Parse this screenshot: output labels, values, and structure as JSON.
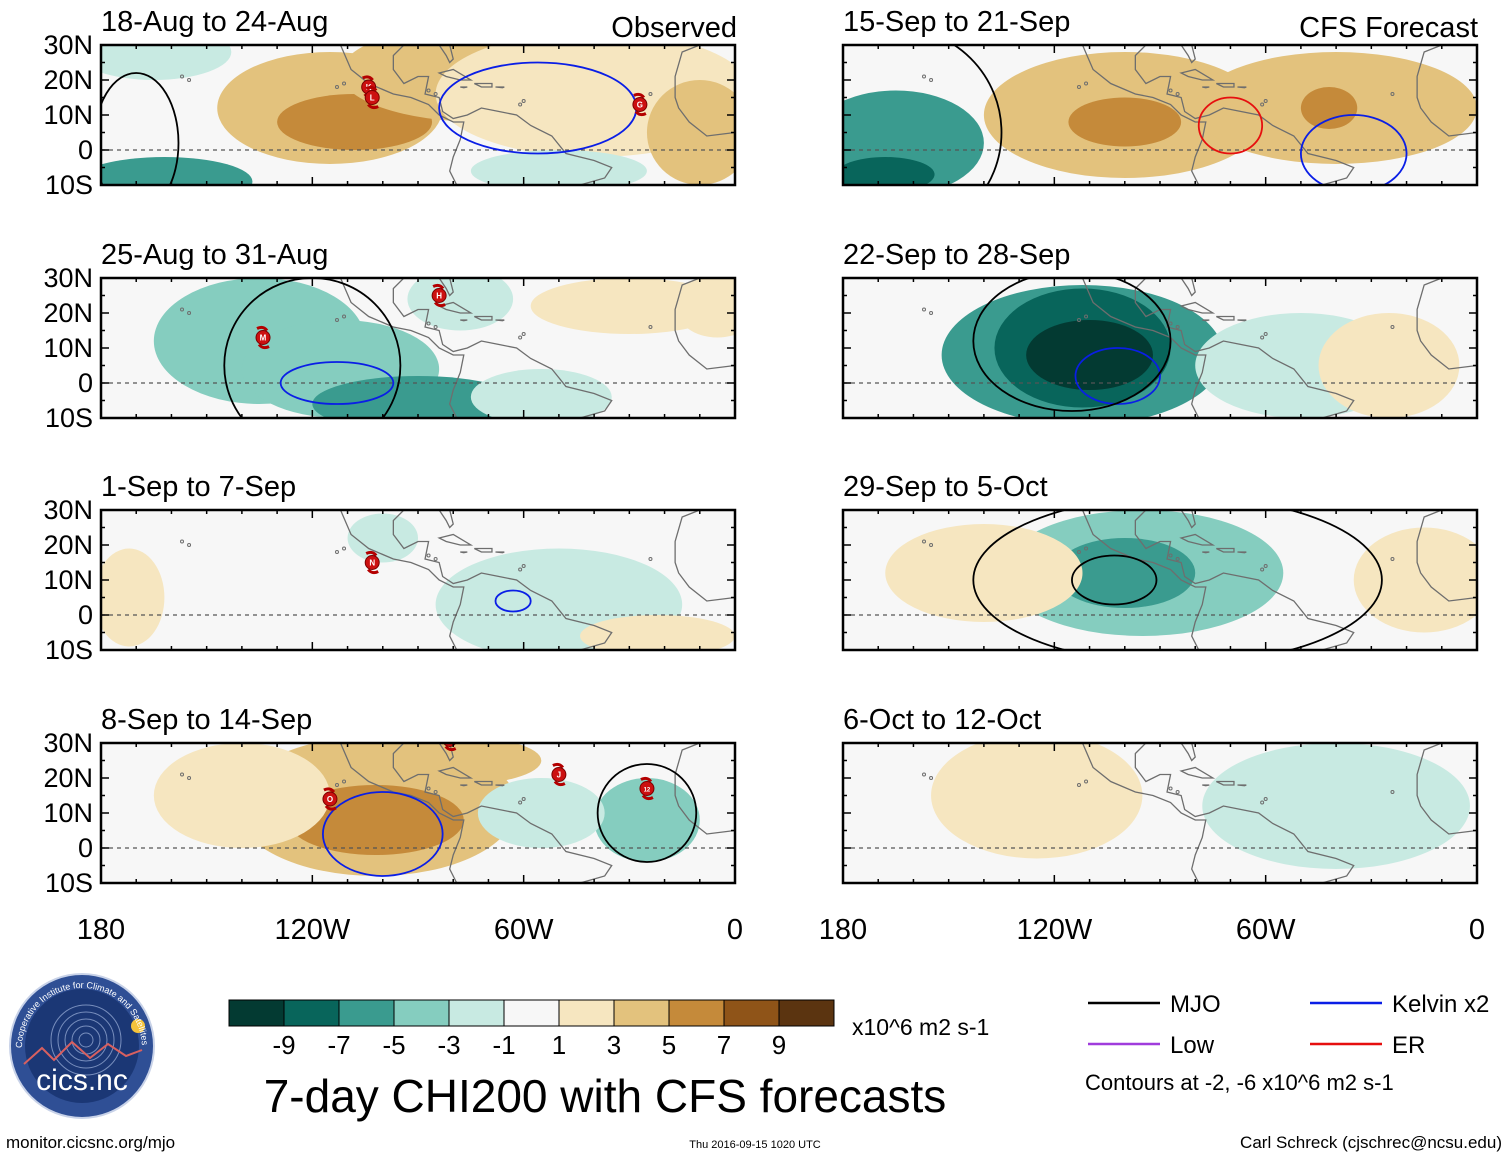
{
  "title": "7-day CHI200 with CFS forecasts",
  "header_observed": "Observed",
  "header_forecast": "CFS Forecast",
  "colors": {
    "bins": [
      "#033a32",
      "#08655b",
      "#3a9b8f",
      "#85cdbf",
      "#c8eae2",
      "#f7f7f7",
      "#f6e6c0",
      "#e3c27d",
      "#c58a3a",
      "#8f5418",
      "#5b3410"
    ],
    "mjo": "#000000",
    "kelvin": "#0a1ee6",
    "low": "#a03cdc",
    "er": "#e60f0f",
    "land": "#6e6e6e",
    "equator": "#555555"
  },
  "colorbar": {
    "labels": [
      "-9",
      "-7",
      "-5",
      "-3",
      "-1",
      "1",
      "3",
      "5",
      "7",
      "9"
    ],
    "units": "x10^6 m2 s-1"
  },
  "legend": {
    "items": [
      {
        "label": "MJO",
        "color_key": "mjo"
      },
      {
        "label": "Kelvin x2",
        "color_key": "kelvin"
      },
      {
        "label": "Low",
        "color_key": "low"
      },
      {
        "label": "ER",
        "color_key": "er"
      }
    ],
    "note": "Contours at -2, -6 x10^6 m2 s-1"
  },
  "footer": {
    "left": "monitor.cicsnc.org/mjo",
    "center": "Thu 2016-09-15 1020 UTC",
    "right": "Carl Schreck (cjschrec@ncsu.edu)"
  },
  "logo": {
    "text": "cics.nc",
    "ring_text": "Cooperative Institute for Climate and Satellites"
  },
  "chart_data": {
    "type": "heatmap",
    "variable": "7-day CHI200 anomaly",
    "units": "x10^6 m2 s-1",
    "lon_ticks": [
      "180",
      "120W",
      "60W",
      "0"
    ],
    "lon_range": [
      -180,
      0
    ],
    "lat_ticks": [
      "30N",
      "20N",
      "10N",
      "0",
      "10S"
    ],
    "lat_range": [
      -10,
      30
    ],
    "panels": [
      {
        "label": "18-Aug to 24-Aug",
        "kind": "Observed",
        "anomalies": [
          {
            "lon": -115,
            "lat": 12,
            "rx": 32,
            "ry": 16,
            "value": 5
          },
          {
            "lon": -108,
            "lat": 8,
            "rx": 22,
            "ry": 8,
            "value": 7
          },
          {
            "lon": -72,
            "lat": 22,
            "rx": 40,
            "ry": 14,
            "value": 4
          },
          {
            "lon": -40,
            "lat": 16,
            "rx": 45,
            "ry": 18,
            "value": 3
          },
          {
            "lon": -10,
            "lat": 5,
            "rx": 15,
            "ry": 15,
            "value": 4
          },
          {
            "lon": -162,
            "lat": -9,
            "rx": 25,
            "ry": 7,
            "value": -5
          },
          {
            "lon": -165,
            "lat": 28,
            "rx": 22,
            "ry": 8,
            "value": -2
          },
          {
            "lon": -50,
            "lat": -6,
            "rx": 25,
            "ry": 6,
            "value": -2
          }
        ],
        "contours": [
          {
            "type": "Kelvin x2",
            "lon": -56,
            "lat": 12,
            "rx": 28,
            "ry": 13
          },
          {
            "type": "MJO",
            "lon": -170,
            "lat": 2,
            "rx": 12,
            "ry": 20
          }
        ],
        "storms": [
          {
            "label": "K",
            "lon": -104,
            "lat": 18
          },
          {
            "label": "L",
            "lon": -103,
            "lat": 15
          },
          {
            "label": "G",
            "lon": -27,
            "lat": 13
          }
        ]
      },
      {
        "label": "25-Aug to 31-Aug",
        "kind": "Observed",
        "anomalies": [
          {
            "lon": -135,
            "lat": 12,
            "rx": 30,
            "ry": 18,
            "value": -3
          },
          {
            "lon": -112,
            "lat": 4,
            "rx": 28,
            "ry": 14,
            "value": -3
          },
          {
            "lon": -90,
            "lat": -6,
            "rx": 30,
            "ry": 8,
            "value": -5
          },
          {
            "lon": -78,
            "lat": 24,
            "rx": 15,
            "ry": 9,
            "value": -2
          },
          {
            "lon": -55,
            "lat": -4,
            "rx": 20,
            "ry": 8,
            "value": -2
          },
          {
            "lon": -30,
            "lat": 22,
            "rx": 28,
            "ry": 8,
            "value": 2
          },
          {
            "lon": -5,
            "lat": 22,
            "rx": 12,
            "ry": 9,
            "value": 3
          }
        ],
        "contours": [
          {
            "type": "Kelvin x2",
            "lon": -113,
            "lat": 0,
            "rx": 16,
            "ry": 6
          },
          {
            "type": "MJO",
            "lon": -120,
            "lat": 5,
            "rx": 25,
            "ry": 25
          }
        ],
        "storms": [
          {
            "label": "M",
            "lon": -134,
            "lat": 13
          },
          {
            "label": "H",
            "lon": -84,
            "lat": 25
          }
        ]
      },
      {
        "label": "1-Sep to 7-Sep",
        "kind": "Observed",
        "anomalies": [
          {
            "lon": -50,
            "lat": 3,
            "rx": 35,
            "ry": 16,
            "value": -2
          },
          {
            "lon": -100,
            "lat": 22,
            "rx": 10,
            "ry": 7,
            "value": -2
          },
          {
            "lon": -172,
            "lat": 5,
            "rx": 10,
            "ry": 14,
            "value": 2
          },
          {
            "lon": -22,
            "lat": -6,
            "rx": 22,
            "ry": 6,
            "value": 2
          }
        ],
        "contours": [
          {
            "type": "Kelvin x2",
            "lon": -63,
            "lat": 4,
            "rx": 5,
            "ry": 3
          }
        ],
        "storms": [
          {
            "label": "N",
            "lon": -103,
            "lat": 15
          }
        ]
      },
      {
        "label": "8-Sep to 14-Sep",
        "kind": "Observed",
        "anomalies": [
          {
            "lon": -102,
            "lat": 12,
            "rx": 40,
            "ry": 20,
            "value": 5
          },
          {
            "lon": -102,
            "lat": 8,
            "rx": 25,
            "ry": 10,
            "value": 7
          },
          {
            "lon": -80,
            "lat": 25,
            "rx": 25,
            "ry": 7,
            "value": 4
          },
          {
            "lon": -140,
            "lat": 15,
            "rx": 25,
            "ry": 15,
            "value": 2
          },
          {
            "lon": -25,
            "lat": 8,
            "rx": 15,
            "ry": 12,
            "value": -3
          },
          {
            "lon": -55,
            "lat": 10,
            "rx": 18,
            "ry": 10,
            "value": -1
          }
        ],
        "contours": [
          {
            "type": "Kelvin x2",
            "lon": -100,
            "lat": 4,
            "rx": 17,
            "ry": 12
          },
          {
            "type": "MJO",
            "lon": -25,
            "lat": 10,
            "rx": 14,
            "ry": 14
          }
        ],
        "storms": [
          {
            "label": "O",
            "lon": -115,
            "lat": 14
          },
          {
            "label": "J",
            "lon": -50,
            "lat": 21
          },
          {
            "label": "12",
            "lon": -25,
            "lat": 17
          },
          {
            "label": "P",
            "lon": -81,
            "lat": 31
          }
        ]
      },
      {
        "label": "15-Sep to 21-Sep",
        "kind": "CFS Forecast",
        "anomalies": [
          {
            "lon": -100,
            "lat": 10,
            "rx": 40,
            "ry": 18,
            "value": 5
          },
          {
            "lon": -100,
            "lat": 8,
            "rx": 16,
            "ry": 7,
            "value": 7
          },
          {
            "lon": -40,
            "lat": 12,
            "rx": 40,
            "ry": 16,
            "value": 5
          },
          {
            "lon": -42,
            "lat": 12,
            "rx": 8,
            "ry": 6,
            "value": 7
          },
          {
            "lon": -165,
            "lat": 2,
            "rx": 25,
            "ry": 15,
            "value": -5
          },
          {
            "lon": -168,
            "lat": -7,
            "rx": 14,
            "ry": 5,
            "value": -7
          }
        ],
        "contours": [
          {
            "type": "ER",
            "lon": -70,
            "lat": 7,
            "rx": 9,
            "ry": 8
          },
          {
            "type": "Kelvin x2",
            "lon": -35,
            "lat": -1,
            "rx": 15,
            "ry": 11
          },
          {
            "type": "MJO",
            "lon": -165,
            "lat": 5,
            "rx": 30,
            "ry": 30
          }
        ],
        "storms": []
      },
      {
        "label": "22-Sep to 28-Sep",
        "kind": "CFS Forecast",
        "anomalies": [
          {
            "lon": -112,
            "lat": 8,
            "rx": 40,
            "ry": 20,
            "value": -5
          },
          {
            "lon": -112,
            "lat": 10,
            "rx": 25,
            "ry": 17,
            "value": -7
          },
          {
            "lon": -110,
            "lat": 8,
            "rx": 18,
            "ry": 10,
            "value": -9
          },
          {
            "lon": -50,
            "lat": 5,
            "rx": 30,
            "ry": 15,
            "value": -2
          },
          {
            "lon": -25,
            "lat": 5,
            "rx": 20,
            "ry": 15,
            "value": 2
          }
        ],
        "contours": [
          {
            "type": "Kelvin x2",
            "lon": -102,
            "lat": 2,
            "rx": 12,
            "ry": 8
          },
          {
            "type": "MJO",
            "lon": -115,
            "lat": 12,
            "rx": 28,
            "ry": 20
          }
        ],
        "storms": []
      },
      {
        "label": "29-Sep to 5-Oct",
        "kind": "CFS Forecast",
        "anomalies": [
          {
            "lon": -95,
            "lat": 12,
            "rx": 40,
            "ry": 18,
            "value": -3
          },
          {
            "lon": -100,
            "lat": 12,
            "rx": 20,
            "ry": 10,
            "value": -5
          },
          {
            "lon": -140,
            "lat": 12,
            "rx": 28,
            "ry": 14,
            "value": 2
          },
          {
            "lon": -15,
            "lat": 10,
            "rx": 20,
            "ry": 15,
            "value": 2
          }
        ],
        "contours": [
          {
            "type": "MJO",
            "lon": -103,
            "lat": 10,
            "rx": 12,
            "ry": 7
          },
          {
            "type": "MJO",
            "lon": -85,
            "lat": 10,
            "rx": 58,
            "ry": 24
          }
        ],
        "storms": []
      },
      {
        "label": "6-Oct to 12-Oct",
        "kind": "CFS Forecast",
        "anomalies": [
          {
            "lon": -125,
            "lat": 15,
            "rx": 30,
            "ry": 18,
            "value": 2
          },
          {
            "lon": -40,
            "lat": 12,
            "rx": 38,
            "ry": 18,
            "value": -2
          }
        ],
        "contours": [],
        "storms": []
      }
    ]
  }
}
